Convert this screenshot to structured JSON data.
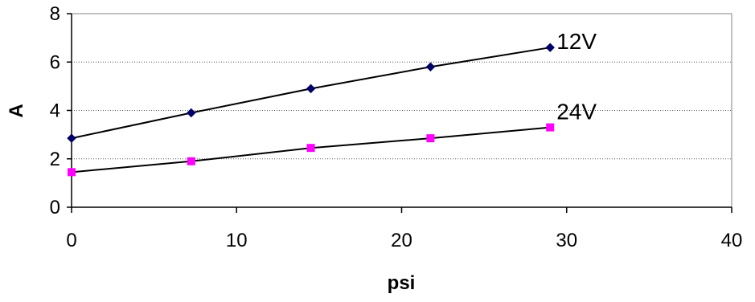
{
  "chart_data": {
    "type": "line",
    "xlabel": "psi",
    "ylabel": "A",
    "xlim": [
      0,
      40
    ],
    "ylim": [
      0,
      8
    ],
    "x_ticks": [
      0,
      10,
      20,
      30,
      40
    ],
    "y_ticks": [
      0,
      2,
      4,
      6,
      8
    ],
    "grid": "horizontal-dotted",
    "series": [
      {
        "name": "12V",
        "color": "#000066",
        "marker": "diamond",
        "line_color": "#000000",
        "x": [
          0,
          7.25,
          14.5,
          21.75,
          29
        ],
        "y": [
          2.85,
          3.9,
          4.9,
          5.8,
          6.6
        ]
      },
      {
        "name": "24V",
        "color": "#ff00ff",
        "marker": "square",
        "line_color": "#000000",
        "x": [
          0,
          7.25,
          14.5,
          21.75,
          29
        ],
        "y": [
          1.45,
          1.9,
          2.45,
          2.85,
          3.3
        ]
      }
    ]
  }
}
